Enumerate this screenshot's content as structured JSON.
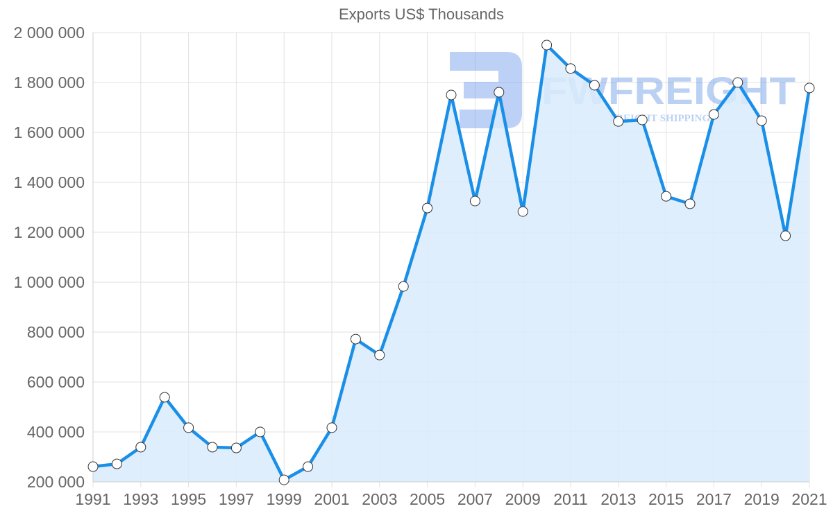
{
  "chart_data": {
    "type": "area",
    "title": "Exports US$ Thousands",
    "xlabel": "",
    "ylabel": "",
    "x": [
      1991,
      1992,
      1993,
      1994,
      1995,
      1996,
      1997,
      1998,
      1999,
      2000,
      2001,
      2002,
      2003,
      2004,
      2005,
      2006,
      2007,
      2008,
      2009,
      2010,
      2011,
      2012,
      2013,
      2014,
      2015,
      2016,
      2017,
      2018,
      2019,
      2020,
      2021
    ],
    "series": [
      {
        "name": "Exports US$ Thousands",
        "values": [
          261000,
          272000,
          339000,
          539000,
          417000,
          339000,
          336000,
          400000,
          208000,
          261000,
          417000,
          772000,
          708000,
          983000,
          1297000,
          1750000,
          1325000,
          1761000,
          1283000,
          1950000,
          1856000,
          1789000,
          1644000,
          1650000,
          1344000,
          1314000,
          1672000,
          1800000,
          1647000,
          1186000,
          1778000
        ]
      }
    ],
    "ylim": [
      200000,
      2000000
    ],
    "y_ticks": [
      "2 000 000",
      "1 800 000",
      "1 600 000",
      "1 400 000",
      "1 200 000",
      "1 000 000",
      "800 000",
      "600 000",
      "400 000",
      "200 000"
    ],
    "x_tick_labels": [
      "1991",
      "1993",
      "1995",
      "1997",
      "1999",
      "2001",
      "2003",
      "2005",
      "2007",
      "2009",
      "2011",
      "2013",
      "2015",
      "2017",
      "2019",
      "2021"
    ],
    "grid": true,
    "legend": "none",
    "colors": {
      "line": "#1a8fe8",
      "fill": "#d8ebfb",
      "point_fill": "#ffffff",
      "point_stroke": "#333333",
      "grid": "#e2e2e2"
    }
  },
  "watermark": {
    "brand": "FWFREIGHT",
    "tagline": "FREIGHT SHIPPING"
  }
}
